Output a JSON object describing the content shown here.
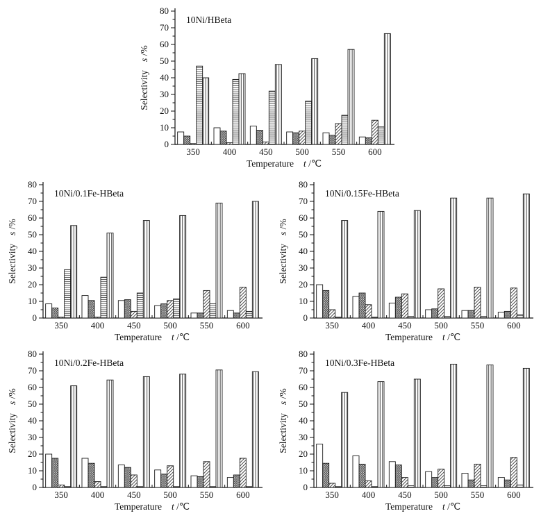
{
  "figure": {
    "description": "Selectivity versus temperature bar charts for five Ni/Fe-HBeta catalysts",
    "axis_color": "#111111",
    "bar_stroke": "#1a1a1a",
    "background": "#ffffff"
  },
  "chart_data": [
    {
      "type": "bar",
      "title": "10Ni/HBeta",
      "xlabel": {
        "text": "Temperature",
        "symbol": "t",
        "unit": " /℃"
      },
      "ylabel": {
        "text": "Selectivity",
        "symbol": "s",
        "unit": " /%"
      },
      "categories": [
        "350",
        "400",
        "450",
        "500",
        "550",
        "600"
      ],
      "ylim": [
        0,
        80
      ],
      "ytick_step": 10,
      "ytick_minor": 5,
      "grid": false,
      "legend": "none",
      "series": [
        {
          "name": "open-bar",
          "pattern": "plain",
          "values": [
            7.5,
            10,
            11,
            7.5,
            7,
            4.5
          ]
        },
        {
          "name": "cross-hatched-bar",
          "pattern": "crosshatch",
          "values": [
            5,
            8,
            8.5,
            7,
            5.5,
            4
          ]
        },
        {
          "name": "diagonal-hatch-bar",
          "pattern": "diagonal",
          "values": [
            0.5,
            1,
            1.5,
            8,
            12.5,
            14.5
          ]
        },
        {
          "name": "horizontal-line-bar",
          "pattern": "horizontal",
          "values": [
            47,
            39,
            32,
            26,
            17.5,
            10.5
          ]
        },
        {
          "name": "vertical-line-bar",
          "pattern": "vertical",
          "values": [
            40,
            42.5,
            48,
            51.5,
            57,
            66.5
          ]
        }
      ]
    },
    {
      "type": "bar",
      "title": "10Ni/0.1Fe-HBeta",
      "xlabel": {
        "text": "Temperature",
        "symbol": "t",
        "unit": " /℃"
      },
      "ylabel": {
        "text": "Selectivity",
        "symbol": "s",
        "unit": " /%"
      },
      "categories": [
        "350",
        "400",
        "450",
        "500",
        "550",
        "600"
      ],
      "ylim": [
        0,
        80
      ],
      "ytick_step": 10,
      "ytick_minor": 5,
      "grid": false,
      "legend": "none",
      "series": [
        {
          "name": "open-bar",
          "pattern": "plain",
          "values": [
            8.5,
            13.5,
            10.5,
            7.5,
            3,
            4.5
          ]
        },
        {
          "name": "cross-hatched-bar",
          "pattern": "crosshatch",
          "values": [
            6,
            10.5,
            11,
            8.5,
            3,
            3
          ]
        },
        {
          "name": "diagonal-hatch-bar",
          "pattern": "diagonal",
          "values": [
            0.5,
            0.5,
            4,
            10.5,
            16.5,
            18.5
          ]
        },
        {
          "name": "horizontal-line-bar",
          "pattern": "horizontal",
          "values": [
            29,
            24.5,
            15,
            11.5,
            8.5,
            4
          ]
        },
        {
          "name": "vertical-line-bar",
          "pattern": "vertical",
          "values": [
            55.5,
            51,
            58.5,
            61.5,
            69,
            70
          ]
        }
      ]
    },
    {
      "type": "bar",
      "title": "10Ni/0.15Fe-HBeta",
      "xlabel": {
        "text": "Temperature",
        "symbol": "t",
        "unit": " /℃"
      },
      "ylabel": {
        "text": "Selectivity",
        "symbol": "s",
        "unit": " /%"
      },
      "categories": [
        "350",
        "400",
        "450",
        "500",
        "550",
        "600"
      ],
      "ylim": [
        0,
        80
      ],
      "ytick_step": 10,
      "ytick_minor": 5,
      "grid": false,
      "legend": "none",
      "series": [
        {
          "name": "open-bar",
          "pattern": "plain",
          "values": [
            20,
            13,
            9,
            5,
            4.5,
            3.5
          ]
        },
        {
          "name": "cross-hatched-bar",
          "pattern": "crosshatch",
          "values": [
            16.5,
            15,
            12.5,
            5.5,
            4.5,
            4
          ]
        },
        {
          "name": "diagonal-hatch-bar",
          "pattern": "diagonal",
          "values": [
            5,
            8,
            14.5,
            17.5,
            18.5,
            18
          ]
        },
        {
          "name": "horizontal-line-bar",
          "pattern": "horizontal",
          "values": [
            0.5,
            0.5,
            1,
            1,
            1,
            2
          ]
        },
        {
          "name": "vertical-line-bar",
          "pattern": "vertical",
          "values": [
            58.5,
            64,
            64.5,
            72,
            72,
            74.5
          ]
        }
      ]
    },
    {
      "type": "bar",
      "title": "10Ni/0.2Fe-HBeta",
      "xlabel": {
        "text": "Temperature",
        "symbol": "t",
        "unit": " /℃"
      },
      "ylabel": {
        "text": "Selectivity",
        "symbol": "s",
        "unit": " /%"
      },
      "categories": [
        "350",
        "400",
        "450",
        "500",
        "550",
        "600"
      ],
      "ylim": [
        0,
        80
      ],
      "ytick_step": 10,
      "ytick_minor": 5,
      "grid": false,
      "legend": "none",
      "series": [
        {
          "name": "open-bar",
          "pattern": "plain",
          "values": [
            20,
            17.5,
            13.5,
            10.5,
            7,
            6
          ]
        },
        {
          "name": "cross-hatched-bar",
          "pattern": "crosshatch",
          "values": [
            17.5,
            14.5,
            12,
            8,
            6.5,
            7.5
          ]
        },
        {
          "name": "diagonal-hatch-bar",
          "pattern": "diagonal",
          "values": [
            1.5,
            3.5,
            7.5,
            13,
            15.5,
            17.5
          ]
        },
        {
          "name": "horizontal-line-bar",
          "pattern": "horizontal",
          "values": [
            0.5,
            0.5,
            0.5,
            0.5,
            0.5,
            0.5
          ]
        },
        {
          "name": "vertical-line-bar",
          "pattern": "vertical",
          "values": [
            61,
            64.5,
            66.5,
            68,
            70.5,
            69.5
          ]
        }
      ]
    },
    {
      "type": "bar",
      "title": "10Ni/0.3Fe-HBeta",
      "xlabel": {
        "text": "Temperature",
        "symbol": "t",
        "unit": " /℃"
      },
      "ylabel": {
        "text": "Selectivity",
        "symbol": "s",
        "unit": " /%"
      },
      "categories": [
        "350",
        "400",
        "450",
        "500",
        "550",
        "600"
      ],
      "ylim": [
        0,
        80
      ],
      "ytick_step": 10,
      "ytick_minor": 5,
      "grid": false,
      "legend": "none",
      "series": [
        {
          "name": "open-bar",
          "pattern": "plain",
          "values": [
            26,
            19,
            15.5,
            9.5,
            8.5,
            6
          ]
        },
        {
          "name": "cross-hatched-bar",
          "pattern": "crosshatch",
          "values": [
            14.5,
            14,
            13.5,
            6,
            4.5,
            4.5
          ]
        },
        {
          "name": "diagonal-hatch-bar",
          "pattern": "diagonal",
          "values": [
            2.5,
            4,
            6,
            11,
            14,
            18
          ]
        },
        {
          "name": "horizontal-line-bar",
          "pattern": "horizontal",
          "values": [
            0.5,
            0.5,
            1,
            1,
            1,
            1.5
          ]
        },
        {
          "name": "vertical-line-bar",
          "pattern": "vertical",
          "values": [
            57,
            63.5,
            65,
            74,
            73.5,
            71.5
          ]
        }
      ]
    }
  ]
}
